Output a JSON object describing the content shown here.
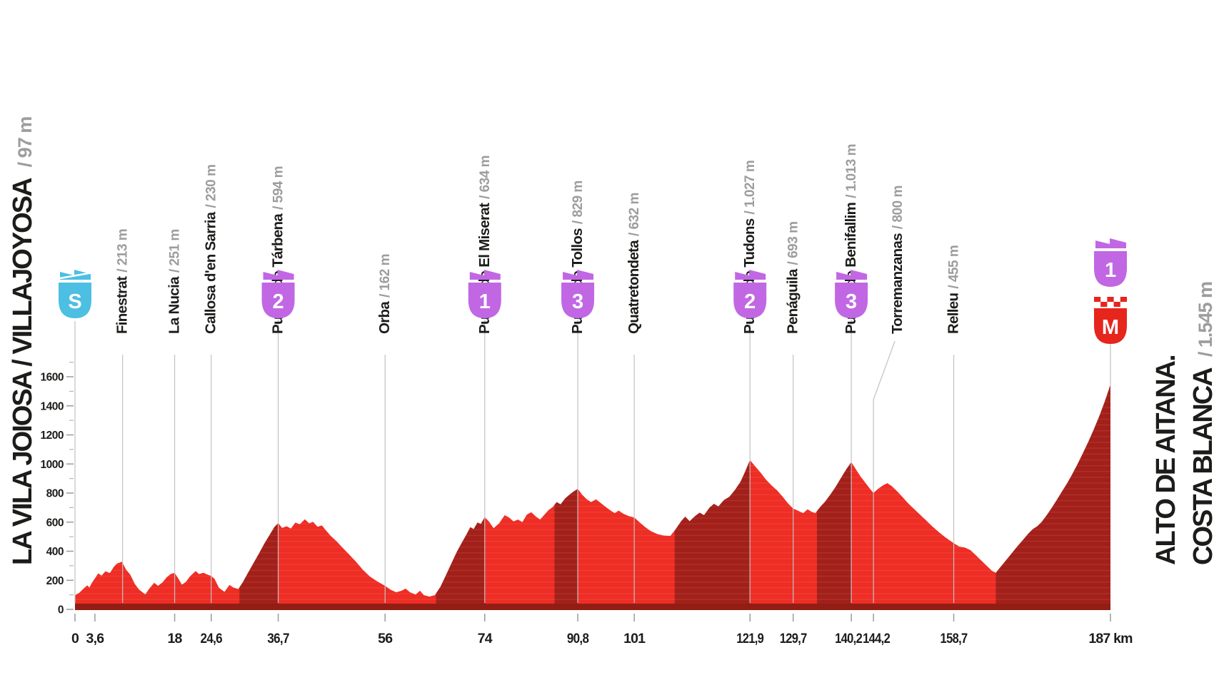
{
  "header": {
    "left": {
      "name": "LA VILA JOIOSA / VILLAJOYOSA",
      "alt": "/ 97 m"
    },
    "right": {
      "line1": "ALTO DE AITANA.",
      "line2": "COSTA BLANCA",
      "alt": "/ 1.545 m"
    }
  },
  "colors": {
    "profile_red": "#ee2d24",
    "steep_red": "#a3201a",
    "base_strip": "#911d15",
    "climb_purple": "#c167e4",
    "start_cyan": "#4cbfe2",
    "finish_red": "#e6251d",
    "grid": "#c2c2c2",
    "tick": "#9b9b9b",
    "minor_tick": "#b5b5b5",
    "text": "#1c1c1a",
    "alt_text": "#9d9d9d",
    "stripe": "rgba(255,255,255,0.09)"
  },
  "chart_data": {
    "type": "area",
    "title": "",
    "xlabel": "km",
    "ylabel": "m",
    "xlim": [
      0,
      187
    ],
    "ylim": [
      0,
      1750
    ],
    "legend": "none",
    "grid": "vertical waypoint lines",
    "y_ticks": [
      0,
      200,
      400,
      600,
      800,
      1000,
      1200,
      1400,
      1600
    ],
    "y_minor_ticks": [
      100,
      300,
      500,
      700,
      900,
      1100,
      1300,
      1500,
      1700
    ],
    "x_ticks": [
      {
        "km": 0,
        "label": "0"
      },
      {
        "km": 3.6,
        "label": "3,6"
      },
      {
        "km": 18,
        "label": "18"
      },
      {
        "km": 24.6,
        "label": "24,6"
      },
      {
        "km": 36.7,
        "label": "36,7"
      },
      {
        "km": 56,
        "label": "56"
      },
      {
        "km": 74,
        "label": "74"
      },
      {
        "km": 90.8,
        "label": "90,8"
      },
      {
        "km": 101,
        "label": "101"
      },
      {
        "km": 121.9,
        "label": "121,9"
      },
      {
        "km": 129.7,
        "label": "129,7"
      },
      {
        "km": 140.2,
        "label": "140,2",
        "dx": -4
      },
      {
        "km": 144.2,
        "label": "144,2",
        "dx": 4
      },
      {
        "km": 158.7,
        "label": "158,7"
      },
      {
        "km": 187,
        "label": "187 km",
        "wide": true
      }
    ],
    "start": {
      "badge": "S",
      "km": 0,
      "elevation_m": 97
    },
    "finish": {
      "km": 187,
      "elevation_m": 1545,
      "badges": [
        {
          "label": "1",
          "type": "category"
        },
        {
          "label": "M",
          "type": "finish"
        }
      ]
    },
    "waypoints": [
      {
        "name": "Finestrat",
        "km": 3.6,
        "elevation_m": 213,
        "alt_text": "/ 213 m",
        "line_km": 8.6
      },
      {
        "name": "La Nucia",
        "km": 18,
        "elevation_m": 251,
        "alt_text": "/ 251 m"
      },
      {
        "name": "Callosa d'en Sarria",
        "km": 24.6,
        "elevation_m": 230,
        "alt_text": "/ 230 m"
      },
      {
        "name": "Puerto de Tárbena",
        "km": 36.7,
        "elevation_m": 594,
        "alt_text": "/ 594 m",
        "badge": "2"
      },
      {
        "name": "Orba",
        "km": 56,
        "elevation_m": 162,
        "alt_text": "/ 162 m"
      },
      {
        "name": "Puerto de El Miserat",
        "km": 74,
        "elevation_m": 634,
        "alt_text": "/ 634 m",
        "badge": "1"
      },
      {
        "name": "Puerto de Tollos",
        "km": 90.8,
        "elevation_m": 829,
        "alt_text": "/ 829 m",
        "badge": "3"
      },
      {
        "name": "Quatretondeta",
        "km": 101,
        "elevation_m": 632,
        "alt_text": "/ 632 m"
      },
      {
        "name": "Puerto de Tudons",
        "km": 121.9,
        "elevation_m": 1027,
        "alt_text": "/ 1.027 m",
        "badge": "2"
      },
      {
        "name": "Penáguila",
        "km": 129.7,
        "elevation_m": 693,
        "alt_text": "/ 693 m"
      },
      {
        "name": "Puerto de Benifallim",
        "km": 140.2,
        "elevation_m": 1013,
        "alt_text": "/ 1.013 m",
        "badge": "3"
      },
      {
        "name": "Torremanzanas",
        "km": 144.2,
        "elevation_m": 800,
        "alt_text": "/ 800 m",
        "connector": true,
        "line_top": 560,
        "label_offset": 34
      },
      {
        "name": "Relleu",
        "km": 158.7,
        "elevation_m": 455,
        "alt_text": "/ 455 m"
      }
    ],
    "steep_segments": [
      [
        29.7,
        36.7
      ],
      [
        65.2,
        74
      ],
      [
        86.6,
        90.8
      ],
      [
        108.3,
        121.9
      ],
      [
        134,
        140.2
      ],
      [
        166.3,
        187
      ]
    ],
    "profile": [
      [
        0,
        97
      ],
      [
        0.8,
        115
      ],
      [
        1.6,
        145
      ],
      [
        2.2,
        165
      ],
      [
        2.6,
        150
      ],
      [
        3.1,
        185
      ],
      [
        3.6,
        213
      ],
      [
        4.2,
        248
      ],
      [
        4.8,
        232
      ],
      [
        5.5,
        262
      ],
      [
        6.3,
        250
      ],
      [
        7,
        292
      ],
      [
        7.6,
        315
      ],
      [
        8.5,
        328
      ],
      [
        9.2,
        275
      ],
      [
        10,
        238
      ],
      [
        10.8,
        175
      ],
      [
        11.6,
        135
      ],
      [
        12.7,
        103
      ],
      [
        13.4,
        142
      ],
      [
        14.3,
        183
      ],
      [
        15,
        162
      ],
      [
        15.8,
        185
      ],
      [
        16.6,
        222
      ],
      [
        17.3,
        243
      ],
      [
        18,
        251
      ],
      [
        18.7,
        210
      ],
      [
        19.3,
        170
      ],
      [
        20,
        188
      ],
      [
        20.8,
        228
      ],
      [
        21.8,
        264
      ],
      [
        22.4,
        243
      ],
      [
        23.2,
        252
      ],
      [
        24,
        238
      ],
      [
        24.6,
        230
      ],
      [
        25.2,
        210
      ],
      [
        26,
        148
      ],
      [
        27,
        120
      ],
      [
        27.9,
        168
      ],
      [
        28.6,
        150
      ],
      [
        29.5,
        140
      ],
      [
        30.3,
        185
      ],
      [
        31.2,
        248
      ],
      [
        32.2,
        315
      ],
      [
        33.2,
        382
      ],
      [
        34.2,
        452
      ],
      [
        35.2,
        515
      ],
      [
        36,
        565
      ],
      [
        36.7,
        594
      ],
      [
        37.4,
        560
      ],
      [
        38.2,
        572
      ],
      [
        39,
        556
      ],
      [
        39.8,
        598
      ],
      [
        40.6,
        585
      ],
      [
        41.5,
        620
      ],
      [
        42.3,
        592
      ],
      [
        43,
        602
      ],
      [
        43.8,
        568
      ],
      [
        44.6,
        577
      ],
      [
        45.4,
        540
      ],
      [
        46.2,
        505
      ],
      [
        47.2,
        470
      ],
      [
        48.3,
        425
      ],
      [
        49.5,
        378
      ],
      [
        50.7,
        330
      ],
      [
        52,
        272
      ],
      [
        53.3,
        225
      ],
      [
        54.6,
        192
      ],
      [
        56,
        162
      ],
      [
        57,
        135
      ],
      [
        58,
        118
      ],
      [
        59,
        128
      ],
      [
        59.7,
        143
      ],
      [
        60.5,
        118
      ],
      [
        61.5,
        102
      ],
      [
        62.3,
        128
      ],
      [
        63,
        98
      ],
      [
        64,
        88
      ],
      [
        65,
        98
      ],
      [
        66,
        155
      ],
      [
        67,
        235
      ],
      [
        68,
        318
      ],
      [
        69,
        398
      ],
      [
        70,
        468
      ],
      [
        70.8,
        522
      ],
      [
        71.4,
        565
      ],
      [
        72,
        552
      ],
      [
        72.7,
        598
      ],
      [
        73.3,
        588
      ],
      [
        74,
        634
      ],
      [
        74.8,
        602
      ],
      [
        75.6,
        558
      ],
      [
        76.6,
        592
      ],
      [
        77.6,
        648
      ],
      [
        78.4,
        632
      ],
      [
        79.2,
        605
      ],
      [
        80,
        618
      ],
      [
        80.8,
        600
      ],
      [
        81.6,
        652
      ],
      [
        82.4,
        668
      ],
      [
        83.2,
        640
      ],
      [
        84,
        618
      ],
      [
        84.7,
        648
      ],
      [
        85.5,
        682
      ],
      [
        86.3,
        705
      ],
      [
        87,
        738
      ],
      [
        87.7,
        722
      ],
      [
        88.5,
        762
      ],
      [
        89.4,
        792
      ],
      [
        90.1,
        812
      ],
      [
        90.8,
        829
      ],
      [
        91.6,
        788
      ],
      [
        92.4,
        758
      ],
      [
        93.2,
        738
      ],
      [
        94.1,
        757
      ],
      [
        95,
        730
      ],
      [
        96,
        700
      ],
      [
        96.8,
        678
      ],
      [
        97.5,
        662
      ],
      [
        98.2,
        680
      ],
      [
        99,
        658
      ],
      [
        100,
        642
      ],
      [
        101,
        632
      ],
      [
        102,
        598
      ],
      [
        103,
        565
      ],
      [
        104,
        538
      ],
      [
        105.2,
        518
      ],
      [
        106.3,
        508
      ],
      [
        107.5,
        505
      ],
      [
        108.5,
        552
      ],
      [
        109.5,
        608
      ],
      [
        110.2,
        638
      ],
      [
        111,
        606
      ],
      [
        112,
        642
      ],
      [
        112.8,
        665
      ],
      [
        113.6,
        648
      ],
      [
        114.6,
        700
      ],
      [
        115.4,
        726
      ],
      [
        116.2,
        708
      ],
      [
        117.2,
        752
      ],
      [
        118.2,
        775
      ],
      [
        119.2,
        822
      ],
      [
        120.2,
        878
      ],
      [
        121,
        945
      ],
      [
        121.9,
        1027
      ],
      [
        122.8,
        985
      ],
      [
        123.8,
        942
      ],
      [
        124.8,
        892
      ],
      [
        125.8,
        852
      ],
      [
        126.8,
        818
      ],
      [
        127.8,
        775
      ],
      [
        128.8,
        728
      ],
      [
        129.7,
        693
      ],
      [
        130.6,
        678
      ],
      [
        131.5,
        662
      ],
      [
        132.3,
        688
      ],
      [
        133,
        672
      ],
      [
        133.7,
        662
      ],
      [
        134.6,
        705
      ],
      [
        135.5,
        742
      ],
      [
        136.4,
        788
      ],
      [
        137.3,
        838
      ],
      [
        138.2,
        895
      ],
      [
        139.2,
        958
      ],
      [
        140.2,
        1013
      ],
      [
        141,
        965
      ],
      [
        141.8,
        918
      ],
      [
        142.6,
        878
      ],
      [
        143.4,
        838
      ],
      [
        144.2,
        800
      ],
      [
        145,
        828
      ],
      [
        145.9,
        852
      ],
      [
        146.7,
        868
      ],
      [
        147.5,
        848
      ],
      [
        148.4,
        815
      ],
      [
        149.4,
        775
      ],
      [
        150.4,
        732
      ],
      [
        151.5,
        692
      ],
      [
        152.6,
        652
      ],
      [
        153.7,
        612
      ],
      [
        154.8,
        572
      ],
      [
        156,
        532
      ],
      [
        157.2,
        495
      ],
      [
        158.7,
        455
      ],
      [
        159.7,
        432
      ],
      [
        160.7,
        425
      ],
      [
        161.7,
        408
      ],
      [
        162.7,
        372
      ],
      [
        163.7,
        335
      ],
      [
        164.7,
        298
      ],
      [
        165.6,
        265
      ],
      [
        166.3,
        252
      ],
      [
        167.3,
        298
      ],
      [
        168.3,
        345
      ],
      [
        169.3,
        392
      ],
      [
        170.3,
        438
      ],
      [
        171.3,
        482
      ],
      [
        172.2,
        522
      ],
      [
        173,
        552
      ],
      [
        173.8,
        572
      ],
      [
        174.6,
        602
      ],
      [
        175.5,
        648
      ],
      [
        176.4,
        698
      ],
      [
        177.3,
        752
      ],
      [
        178.2,
        808
      ],
      [
        179.1,
        862
      ],
      [
        180,
        922
      ],
      [
        181,
        995
      ],
      [
        182,
        1072
      ],
      [
        183,
        1152
      ],
      [
        184,
        1238
      ],
      [
        185,
        1330
      ],
      [
        186,
        1432
      ],
      [
        187,
        1545
      ]
    ]
  }
}
